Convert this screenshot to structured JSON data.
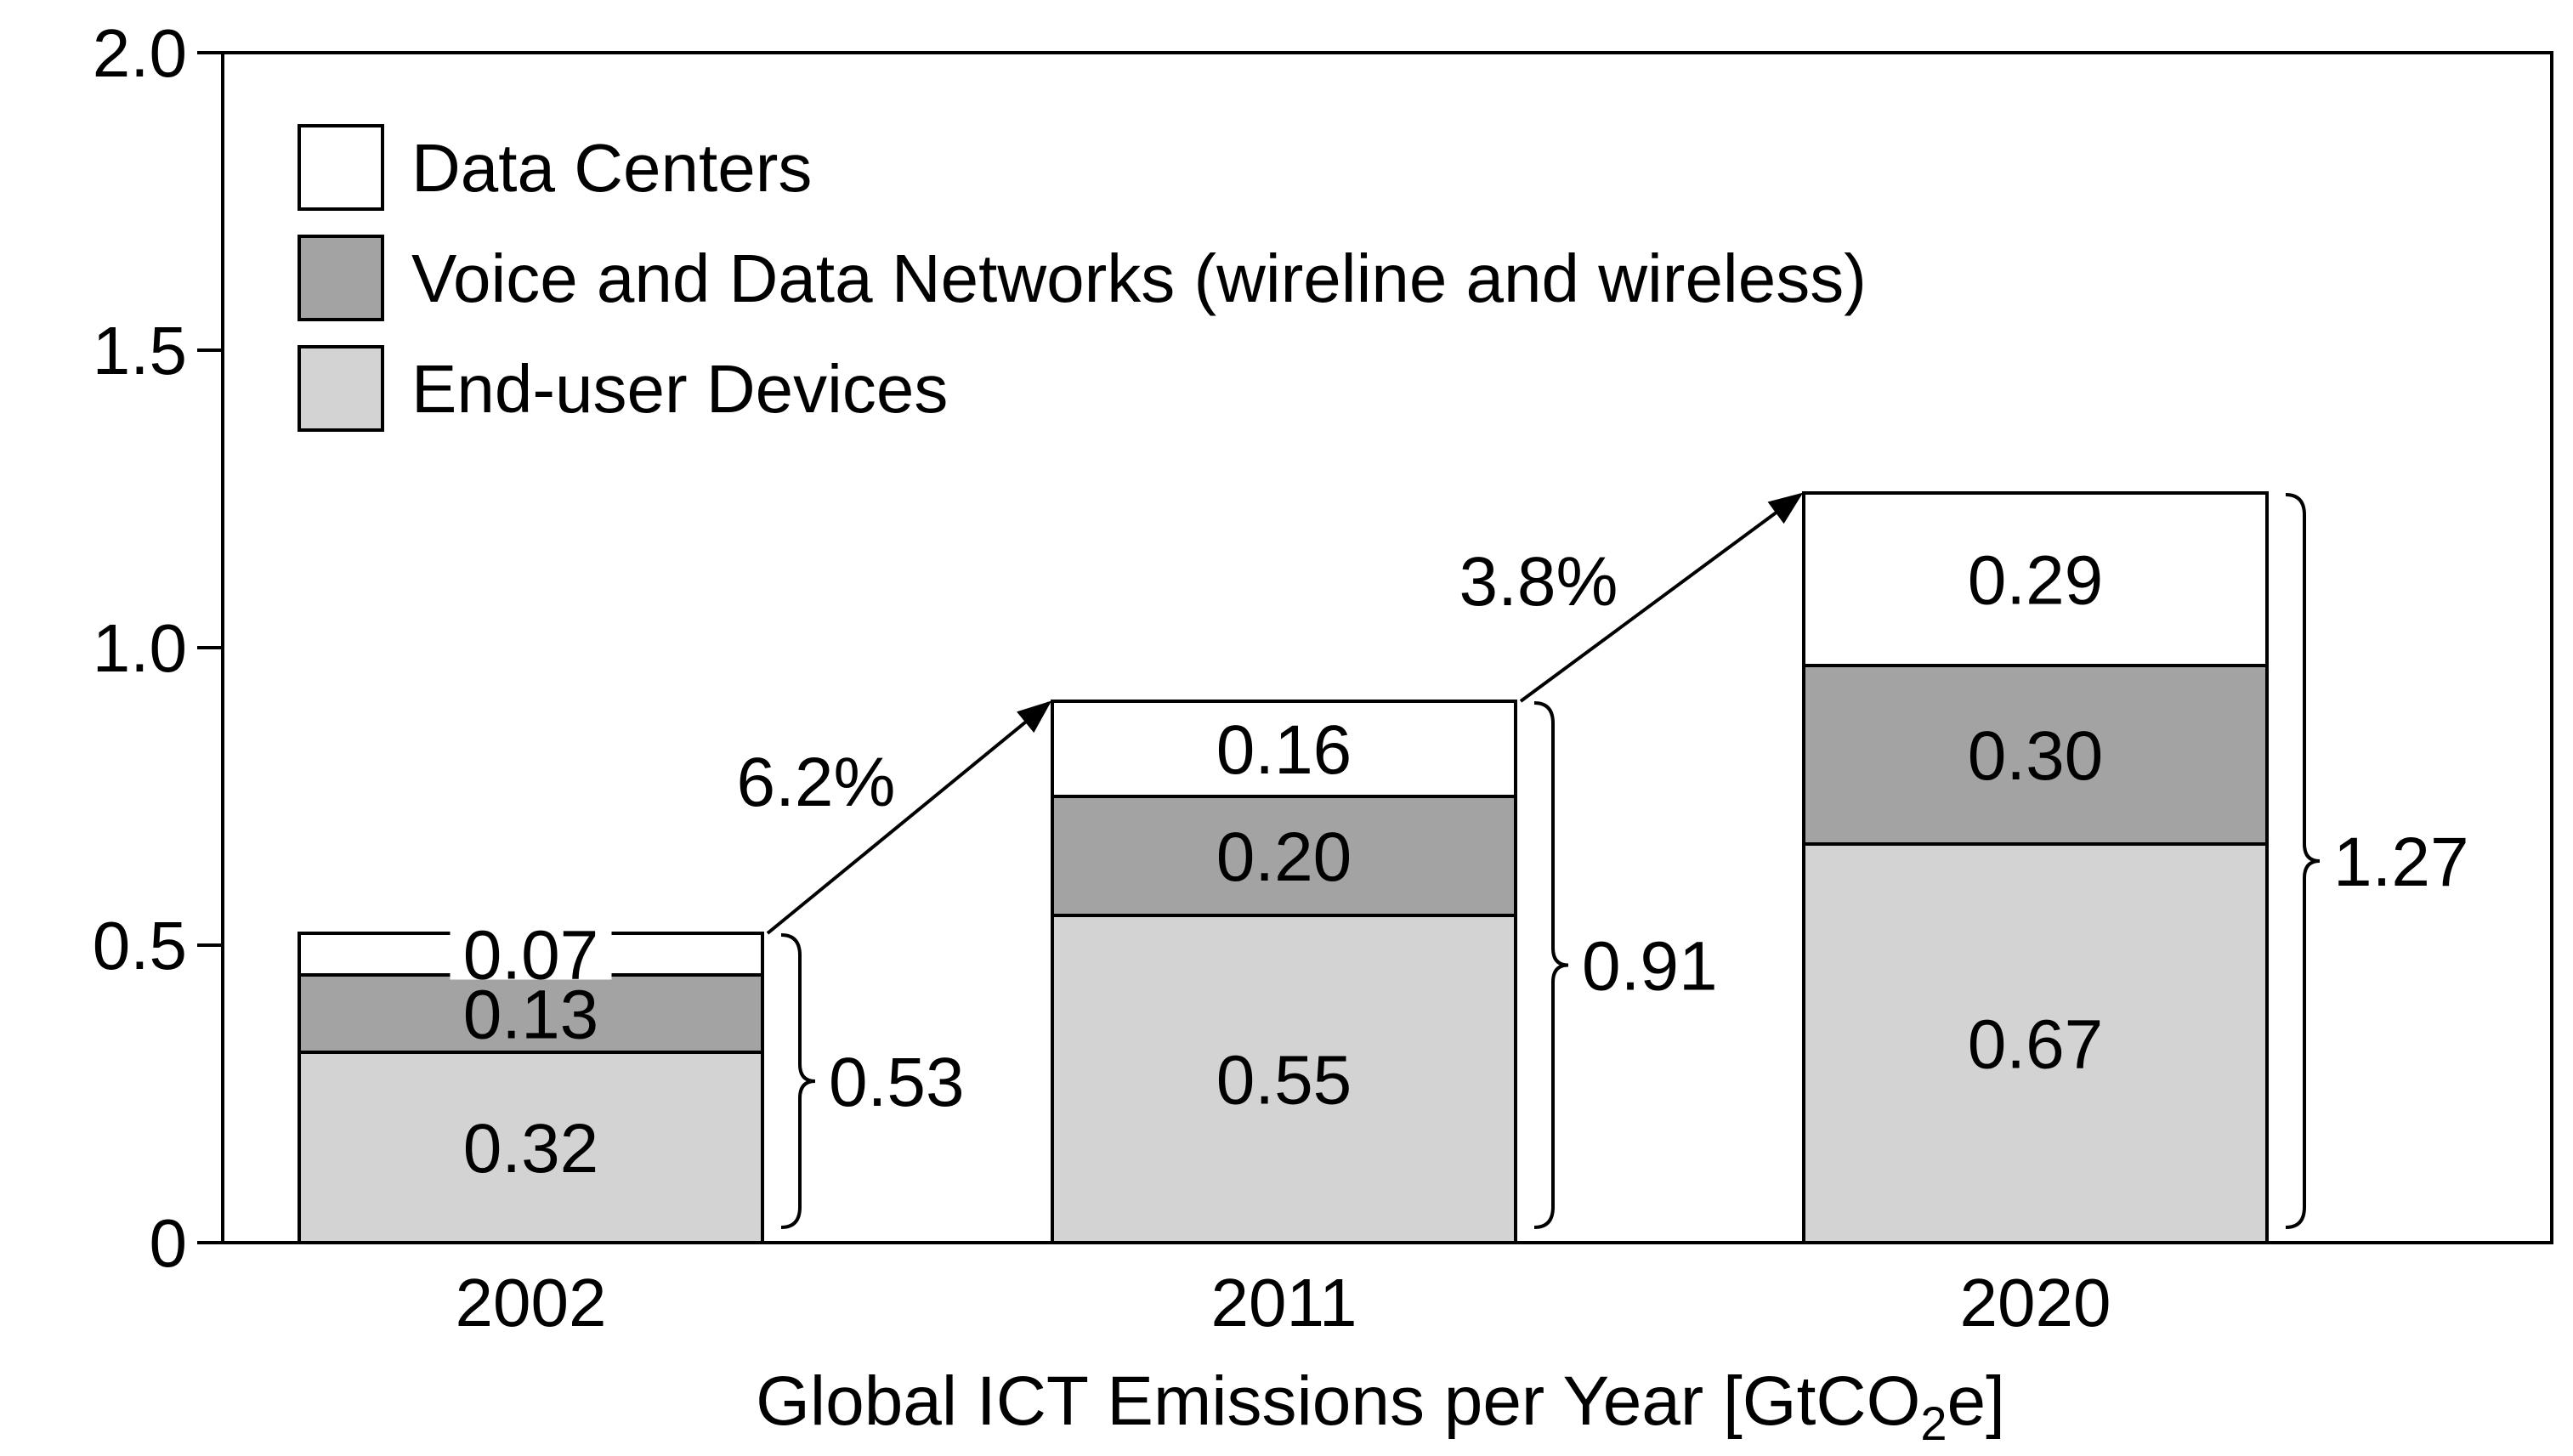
{
  "chart_data": {
    "type": "bar",
    "stacked": true,
    "categories": [
      "2002",
      "2011",
      "2020"
    ],
    "series": [
      {
        "name": "End-user Devices",
        "values": [
          0.32,
          0.55,
          0.67
        ],
        "labels": [
          "0.32",
          "0.55",
          "0.67"
        ],
        "color": "#d3d3d3"
      },
      {
        "name": "Voice and Data Networks (wireline and wireless)",
        "values": [
          0.13,
          0.2,
          0.3
        ],
        "labels": [
          "0.13",
          "0.20",
          "0.30"
        ],
        "color": "#a3a3a3"
      },
      {
        "name": "Data Centers",
        "values": [
          0.07,
          0.16,
          0.29
        ],
        "labels": [
          "0.07",
          "0.16",
          "0.29"
        ],
        "color": "#ffffff"
      }
    ],
    "totals": [
      0.53,
      0.91,
      1.27
    ],
    "total_labels": [
      "0.53",
      "0.91",
      "1.27"
    ],
    "growth_rates": [
      {
        "from": "2002",
        "to": "2011",
        "label": "6.2%"
      },
      {
        "from": "2011",
        "to": "2020",
        "label": "3.8%"
      }
    ],
    "ylim": [
      0,
      2.0
    ],
    "yticks": [
      0,
      0.5,
      1.0,
      1.5,
      2.0
    ],
    "ytick_labels": [
      "0",
      "0.5",
      "1.0",
      "1.5",
      "2.0"
    ],
    "xlabel": {
      "text": "Global ICT Emissions per Year [GtCO",
      "subscript": "2",
      "suffix": "e]"
    },
    "ylabel": "",
    "title": "",
    "grid": false,
    "legend_position": "top-left",
    "legend_order": [
      "Data Centers",
      "Voice and Data Networks (wireline and wireless)",
      "End-user Devices"
    ]
  }
}
